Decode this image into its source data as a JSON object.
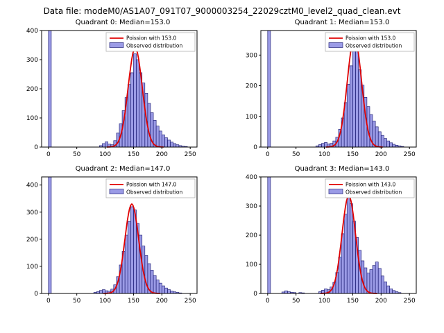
{
  "figure_title": "Data file: modeM0/AS1A07_091T07_9000003254_22029cztM0_level2_quad_clean.evt",
  "colors": {
    "bar_fill": "rgba(72,72,210,0.55)",
    "bar_edge": "#26267a",
    "curve": "#e00000",
    "legend_border": "#b3b3b3"
  },
  "chart_data": [
    {
      "type": "bar",
      "title": "Quadrant 0: Median=153.0",
      "legend": [
        "Poission with 153.0",
        "Observed distribution"
      ],
      "xlim": [
        -12,
        262
      ],
      "ylim": [
        0,
        400
      ],
      "xticks": [
        0,
        50,
        100,
        150,
        200,
        250
      ],
      "yticks": [
        0,
        100,
        200,
        300,
        400
      ],
      "bin_width": 5,
      "poisson_lambda": 153.0,
      "curve_peak": 340,
      "bars": [
        [
          0,
          450
        ],
        [
          90,
          5
        ],
        [
          95,
          12
        ],
        [
          100,
          18
        ],
        [
          105,
          10
        ],
        [
          110,
          8
        ],
        [
          115,
          22
        ],
        [
          120,
          48
        ],
        [
          125,
          80
        ],
        [
          130,
          125
        ],
        [
          135,
          170
        ],
        [
          140,
          215
        ],
        [
          145,
          255
        ],
        [
          150,
          320
        ],
        [
          155,
          300
        ],
        [
          160,
          255
        ],
        [
          165,
          220
        ],
        [
          170,
          185
        ],
        [
          175,
          150
        ],
        [
          180,
          118
        ],
        [
          185,
          92
        ],
        [
          190,
          72
        ],
        [
          195,
          55
        ],
        [
          200,
          42
        ],
        [
          205,
          32
        ],
        [
          210,
          24
        ],
        [
          215,
          17
        ],
        [
          220,
          12
        ],
        [
          225,
          8
        ],
        [
          230,
          5
        ],
        [
          235,
          3
        ],
        [
          240,
          2
        ]
      ]
    },
    {
      "type": "bar",
      "title": "Quadrant 1: Median=153.0",
      "legend": [
        "Poission with 153.0",
        "Observed distribution"
      ],
      "xlim": [
        -12,
        262
      ],
      "ylim": [
        0,
        380
      ],
      "xticks": [
        0,
        50,
        100,
        150,
        200,
        250
      ],
      "yticks": [
        0,
        100,
        200,
        300
      ],
      "bin_width": 5,
      "poisson_lambda": 153.0,
      "curve_peak": 360,
      "bars": [
        [
          0,
          450
        ],
        [
          85,
          4
        ],
        [
          90,
          8
        ],
        [
          95,
          12
        ],
        [
          100,
          15
        ],
        [
          105,
          10
        ],
        [
          110,
          12
        ],
        [
          115,
          20
        ],
        [
          120,
          32
        ],
        [
          125,
          58
        ],
        [
          130,
          95
        ],
        [
          135,
          145
        ],
        [
          140,
          205
        ],
        [
          145,
          265
        ],
        [
          150,
          360
        ],
        [
          155,
          318
        ],
        [
          160,
          252
        ],
        [
          165,
          202
        ],
        [
          170,
          162
        ],
        [
          175,
          132
        ],
        [
          180,
          106
        ],
        [
          185,
          85
        ],
        [
          190,
          66
        ],
        [
          195,
          50
        ],
        [
          200,
          38
        ],
        [
          205,
          28
        ],
        [
          210,
          20
        ],
        [
          215,
          14
        ],
        [
          220,
          9
        ],
        [
          225,
          6
        ],
        [
          230,
          4
        ],
        [
          235,
          2
        ]
      ]
    },
    {
      "type": "bar",
      "title": "Quadrant 2: Median=147.0",
      "legend": [
        "Poission with 147.0",
        "Observed distribution"
      ],
      "xlim": [
        -12,
        262
      ],
      "ylim": [
        0,
        430
      ],
      "xticks": [
        0,
        50,
        100,
        150,
        200,
        250
      ],
      "yticks": [
        0,
        100,
        200,
        300,
        400
      ],
      "bin_width": 5,
      "poisson_lambda": 147.0,
      "curve_peak": 330,
      "bars": [
        [
          0,
          450
        ],
        [
          80,
          4
        ],
        [
          85,
          7
        ],
        [
          90,
          11
        ],
        [
          95,
          14
        ],
        [
          100,
          10
        ],
        [
          105,
          9
        ],
        [
          110,
          16
        ],
        [
          115,
          32
        ],
        [
          120,
          62
        ],
        [
          125,
          105
        ],
        [
          130,
          155
        ],
        [
          135,
          215
        ],
        [
          140,
          265
        ],
        [
          145,
          320
        ],
        [
          150,
          308
        ],
        [
          155,
          258
        ],
        [
          160,
          215
        ],
        [
          165,
          175
        ],
        [
          170,
          140
        ],
        [
          175,
          110
        ],
        [
          180,
          86
        ],
        [
          185,
          66
        ],
        [
          190,
          50
        ],
        [
          195,
          38
        ],
        [
          200,
          28
        ],
        [
          205,
          20
        ],
        [
          210,
          14
        ],
        [
          215,
          9
        ],
        [
          220,
          6
        ],
        [
          225,
          4
        ],
        [
          230,
          2
        ]
      ]
    },
    {
      "type": "bar",
      "title": "Quadrant 3: Median=143.0",
      "legend": [
        "Poission with 143.0",
        "Observed distribution"
      ],
      "xlim": [
        -12,
        262
      ],
      "ylim": [
        0,
        400
      ],
      "xticks": [
        0,
        50,
        100,
        150,
        200,
        250
      ],
      "yticks": [
        0,
        100,
        200,
        300,
        400
      ],
      "bin_width": 5,
      "poisson_lambda": 143.0,
      "curve_peak": 335,
      "bars": [
        [
          0,
          450
        ],
        [
          25,
          5
        ],
        [
          30,
          9
        ],
        [
          35,
          6
        ],
        [
          40,
          4
        ],
        [
          45,
          3
        ],
        [
          55,
          3
        ],
        [
          60,
          2
        ],
        [
          90,
          6
        ],
        [
          95,
          11
        ],
        [
          100,
          16
        ],
        [
          105,
          13
        ],
        [
          110,
          22
        ],
        [
          115,
          38
        ],
        [
          120,
          72
        ],
        [
          125,
          125
        ],
        [
          130,
          205
        ],
        [
          135,
          272
        ],
        [
          140,
          330
        ],
        [
          145,
          308
        ],
        [
          150,
          248
        ],
        [
          155,
          192
        ],
        [
          160,
          148
        ],
        [
          165,
          112
        ],
        [
          170,
          88
        ],
        [
          175,
          70
        ],
        [
          180,
          82
        ],
        [
          185,
          96
        ],
        [
          190,
          108
        ],
        [
          195,
          86
        ],
        [
          200,
          60
        ],
        [
          205,
          40
        ],
        [
          210,
          26
        ],
        [
          215,
          16
        ],
        [
          220,
          10
        ],
        [
          225,
          6
        ],
        [
          230,
          3
        ]
      ]
    }
  ]
}
